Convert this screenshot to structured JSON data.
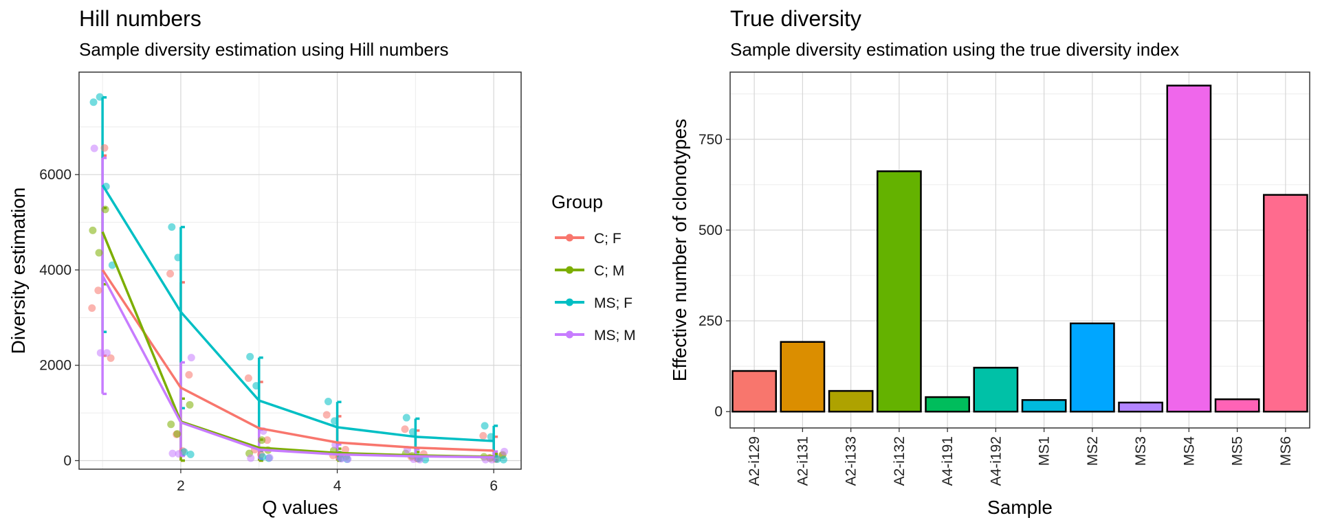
{
  "left_panel": {
    "title": "Hill numbers",
    "subtitle": "Sample diversity estimation using Hill numbers"
  },
  "right_panel": {
    "title": "True diversity",
    "subtitle": "Sample diversity estimation using the true diversity index"
  },
  "legend": {
    "title": "Group",
    "entries": [
      "C; F",
      "C; M",
      "MS; F",
      "MS; M"
    ]
  },
  "chart_data": [
    {
      "type": "line",
      "title": "Hill numbers",
      "subtitle": "Sample diversity estimation using Hill numbers",
      "xlabel": "Q values",
      "ylabel": "Diversity estimation",
      "xlim": [
        0.7,
        6.35
      ],
      "ylim": [
        -180,
        8150
      ],
      "x_ticks": [
        2,
        4,
        6
      ],
      "y_ticks": [
        0,
        2000,
        4000,
        6000
      ],
      "grid": true,
      "legend_position": "right",
      "x": [
        1,
        2,
        3,
        4,
        5,
        6
      ],
      "series": [
        {
          "name": "C; F",
          "color": "#F8766D",
          "values": [
            4000,
            1530,
            680,
            380,
            270,
            210
          ],
          "error_low": [
            2200,
            0,
            0,
            0,
            0,
            0
          ],
          "error_high": [
            6400,
            3740,
            1650,
            930,
            630,
            500
          ],
          "points": [
            [
              1,
              3200
            ],
            [
              1,
              3570
            ],
            [
              1,
              6560
            ],
            [
              1,
              2150
            ],
            [
              2,
              3920
            ],
            [
              2,
              550
            ],
            [
              2,
              200
            ],
            [
              2,
              1800
            ],
            [
              3,
              1730
            ],
            [
              3,
              230
            ],
            [
              3,
              130
            ],
            [
              3,
              430
            ],
            [
              4,
              960
            ],
            [
              4,
              110
            ],
            [
              4,
              70
            ],
            [
              4,
              230
            ],
            [
              5,
              660
            ],
            [
              5,
              80
            ],
            [
              5,
              40
            ],
            [
              5,
              140
            ],
            [
              6,
              520
            ],
            [
              6,
              60
            ],
            [
              6,
              30
            ],
            [
              6,
              110
            ]
          ]
        },
        {
          "name": "C; M",
          "color": "#7CAE00",
          "values": [
            4800,
            820,
            270,
            160,
            110,
            80
          ],
          "error_low": [
            3700,
            0,
            0,
            0,
            0,
            0
          ],
          "error_high": [
            5300,
            1300,
            440,
            250,
            180,
            140
          ],
          "points": [
            [
              1,
              4830
            ],
            [
              1,
              4360
            ],
            [
              1,
              5270
            ],
            [
              2,
              1170
            ],
            [
              2,
              760
            ],
            [
              2,
              560
            ],
            [
              3,
              430
            ],
            [
              3,
              220
            ],
            [
              3,
              150
            ],
            [
              4,
              210
            ],
            [
              4,
              130
            ],
            [
              4,
              90
            ],
            [
              5,
              150
            ],
            [
              5,
              100
            ],
            [
              5,
              60
            ],
            [
              6,
              120
            ],
            [
              6,
              80
            ],
            [
              6,
              50
            ]
          ]
        },
        {
          "name": "MS; F",
          "color": "#00BFC4",
          "values": [
            5780,
            3120,
            1260,
            700,
            500,
            410
          ],
          "error_low": [
            2700,
            1100,
            200,
            170,
            120,
            90
          ],
          "error_high": [
            7620,
            4900,
            2160,
            1230,
            880,
            730
          ],
          "points": [
            [
              1,
              7520
            ],
            [
              1,
              7630
            ],
            [
              1,
              5750
            ],
            [
              1,
              4100
            ],
            [
              2,
              4900
            ],
            [
              2,
              4260
            ],
            [
              2,
              180
            ],
            [
              2,
              130
            ],
            [
              3,
              2180
            ],
            [
              3,
              1570
            ],
            [
              3,
              80
            ],
            [
              3,
              50
            ],
            [
              4,
              1240
            ],
            [
              4,
              830
            ],
            [
              4,
              50
            ],
            [
              4,
              30
            ],
            [
              5,
              900
            ],
            [
              5,
              600
            ],
            [
              5,
              40
            ],
            [
              5,
              20
            ],
            [
              6,
              730
            ],
            [
              6,
              500
            ],
            [
              6,
              30
            ],
            [
              6,
              20
            ]
          ]
        },
        {
          "name": "MS; M",
          "color": "#C77CFF",
          "values": [
            3880,
            800,
            230,
            130,
            90,
            70
          ],
          "error_low": [
            1400,
            100,
            40,
            30,
            20,
            10
          ],
          "error_high": [
            6350,
            2060,
            650,
            340,
            240,
            190
          ],
          "points": [
            [
              1,
              6550
            ],
            [
              1,
              2260
            ],
            [
              1,
              2260
            ],
            [
              2,
              2160
            ],
            [
              2,
              150
            ],
            [
              2,
              140
            ],
            [
              3,
              620
            ],
            [
              3,
              60
            ],
            [
              3,
              50
            ],
            [
              4,
              330
            ],
            [
              4,
              40
            ],
            [
              4,
              30
            ],
            [
              5,
              230
            ],
            [
              5,
              30
            ],
            [
              5,
              20
            ],
            [
              6,
              190
            ],
            [
              6,
              20
            ],
            [
              6,
              20
            ]
          ]
        }
      ]
    },
    {
      "type": "bar",
      "title": "True diversity",
      "subtitle": "Sample diversity estimation using the true diversity index",
      "xlabel": "Sample",
      "ylabel": "Effective number of clonotypes",
      "ylim": [
        -45,
        935
      ],
      "y_ticks": [
        0,
        250,
        500,
        750
      ],
      "grid": true,
      "categories": [
        "A2-i129",
        "A2-i131",
        "A2-i133",
        "A2-i132",
        "A4-i191",
        "A4-i192",
        "MS1",
        "MS2",
        "MS3",
        "MS4",
        "MS5",
        "MS6"
      ],
      "values": [
        112,
        192,
        57,
        662,
        40,
        121,
        32,
        243,
        25,
        898,
        34,
        597
      ],
      "colors": [
        "#F8766D",
        "#DB8E00",
        "#AEA200",
        "#64B200",
        "#00BD5C",
        "#00C1A7",
        "#00BADE",
        "#00A6FF",
        "#B385FF",
        "#EF67EB",
        "#FF63B6",
        "#FF6B8E"
      ]
    }
  ]
}
